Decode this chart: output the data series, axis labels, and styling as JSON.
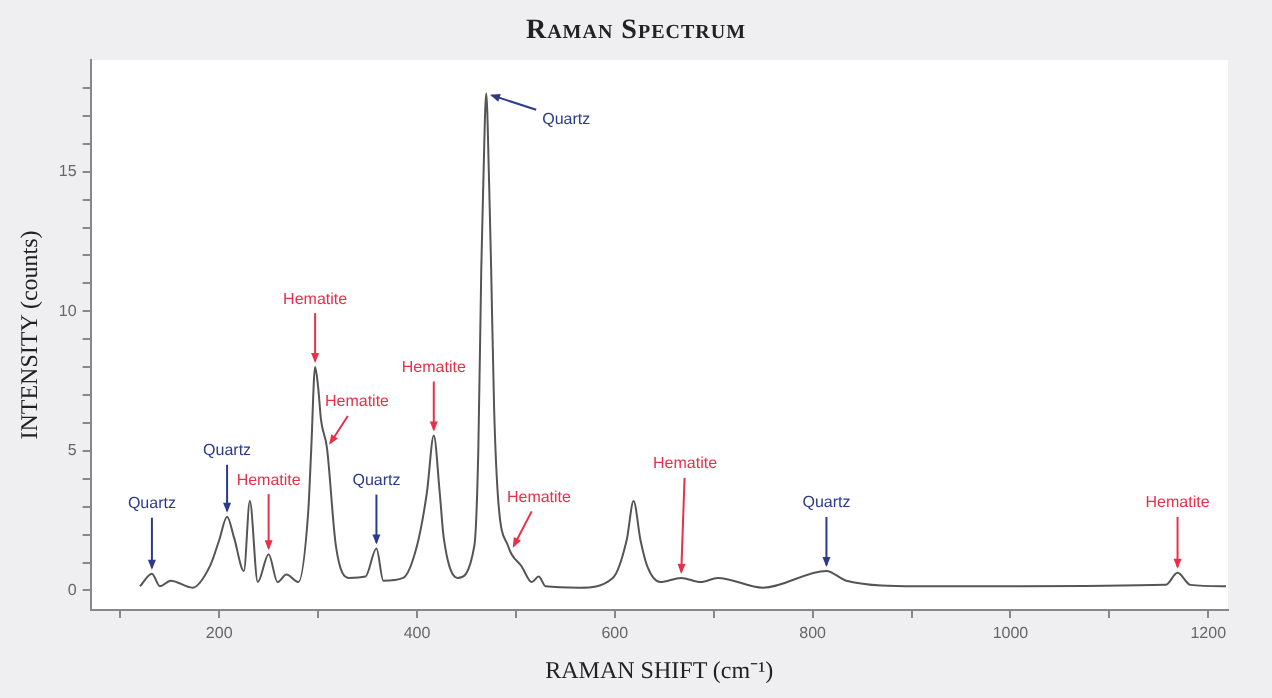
{
  "chart_data": {
    "type": "line",
    "title": "Raman Spectrum",
    "xlabel": "RAMAN SHIFT (cm⁻¹)",
    "ylabel": "INTENSITY (counts)",
    "x": [
      120,
      132,
      140,
      151,
      173,
      191,
      200,
      208,
      215,
      225,
      231,
      239,
      250,
      259,
      268,
      280,
      290,
      293,
      297,
      300,
      303,
      309,
      318,
      331,
      348,
      359,
      366,
      386,
      400,
      410,
      417,
      423,
      427,
      441,
      458,
      462,
      465,
      467,
      470,
      473,
      475,
      478,
      482,
      492,
      506,
      516,
      523,
      530,
      564,
      598,
      612,
      619,
      626,
      633,
      646,
      667,
      687,
      704,
      750,
      814,
      834,
      905,
      1010,
      1157,
      1169,
      1182,
      1218
    ],
    "values": [
      0.15,
      0.6,
      0.15,
      0.35,
      0.1,
      0.9,
      1.8,
      2.64,
      1.9,
      0.7,
      3.2,
      0.3,
      1.3,
      0.3,
      0.57,
      0.3,
      2.8,
      5,
      8.0,
      7.3,
      6.1,
      5.1,
      1.6,
      0.45,
      0.5,
      1.5,
      0.35,
      0.45,
      1.6,
      3.5,
      5.55,
      3.5,
      1.9,
      0.45,
      1.6,
      5,
      11.5,
      14.5,
      17.8,
      14.5,
      11.5,
      6.5,
      3.3,
      1.6,
      0.85,
      0.3,
      0.5,
      0.15,
      0.1,
      0.45,
      1.8,
      3.2,
      1.8,
      0.85,
      0.3,
      0.45,
      0.3,
      0.45,
      0.1,
      0.7,
      0.35,
      0.15,
      0.15,
      0.2,
      0.63,
      0.2,
      0.15
    ],
    "color": "#555555",
    "xlim": [
      70,
      1220
    ],
    "xticks": [
      {
        "value": 100,
        "label": null
      },
      200,
      {
        "value": 300,
        "label": null
      },
      400,
      {
        "value": 500,
        "label": null
      },
      600,
      {
        "value": 700,
        "label": null
      },
      800,
      {
        "value": 900,
        "label": null
      },
      1000,
      {
        "value": 1100,
        "label": null
      },
      1200
    ],
    "ylim": [
      -0.7,
      19
    ],
    "yticks": [
      0,
      {
        "value": 1,
        "label": null
      },
      {
        "value": 2,
        "label": null
      },
      {
        "value": 3,
        "label": null
      },
      {
        "value": 4,
        "label": null
      },
      5,
      {
        "value": 6,
        "label": null
      },
      {
        "value": 7,
        "label": null
      },
      {
        "value": 8,
        "label": null
      },
      {
        "value": 9,
        "label": null
      },
      10,
      {
        "value": 11,
        "label": null
      },
      {
        "value": 12,
        "label": null
      },
      {
        "value": 13,
        "label": null
      },
      {
        "value": 14,
        "label": null
      },
      15,
      {
        "value": 16,
        "label": null
      },
      {
        "value": 17,
        "label": null
      },
      {
        "value": 18,
        "label": null
      }
    ],
    "grid": false,
    "legend": false,
    "annotations": [
      {
        "text": "Quartz",
        "x": 132,
        "y": 0.6
      },
      {
        "text": "Quartz",
        "x": 208,
        "y": 2.64
      },
      {
        "text": "Hematite",
        "x": 250,
        "y": 1.3
      },
      {
        "text": "Hematite",
        "x": 297,
        "y": 8.0
      },
      {
        "text": "Hematite",
        "x": 309,
        "y": 5.1
      },
      {
        "text": "Quartz",
        "x": 359,
        "y": 1.5
      },
      {
        "text": "Hematite",
        "x": 417,
        "y": 5.55
      },
      {
        "text": "Quartz",
        "x": 470,
        "y": 17.8
      },
      {
        "text": "Hematite",
        "x": 495,
        "y": 1.4
      },
      {
        "text": "Hematite",
        "x": 667,
        "y": 0.45
      },
      {
        "text": "Quartz",
        "x": 814,
        "y": 0.7
      },
      {
        "text": "Hematite",
        "x": 1169,
        "y": 0.63
      }
    ]
  }
}
